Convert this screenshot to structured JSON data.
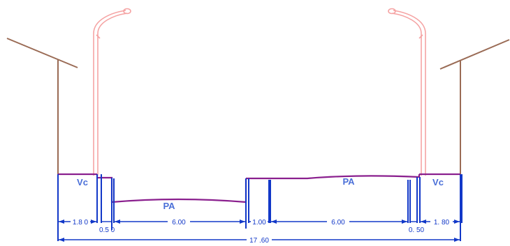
{
  "colors": {
    "background": "#ffffff",
    "building": "#9a6b55",
    "lamp": "#f5a3a3",
    "road_surface": "#8a1f8e",
    "dimension": "#1238c8",
    "zone_label": "#4a6fd8"
  },
  "zone_labels": {
    "sidewalk_left": "Vc",
    "sidewalk_right": "Vc",
    "lane_left": "PA",
    "lane_right": "PA"
  },
  "dimensions": {
    "sidewalk_left": "1.8 0",
    "curb_left": "0.5 0",
    "lane_left": "6.00",
    "median": "1.00",
    "lane_right": "6.00",
    "curb_right": "0. 50",
    "sidewalk_right": "1. 80",
    "total": "17 .60"
  }
}
